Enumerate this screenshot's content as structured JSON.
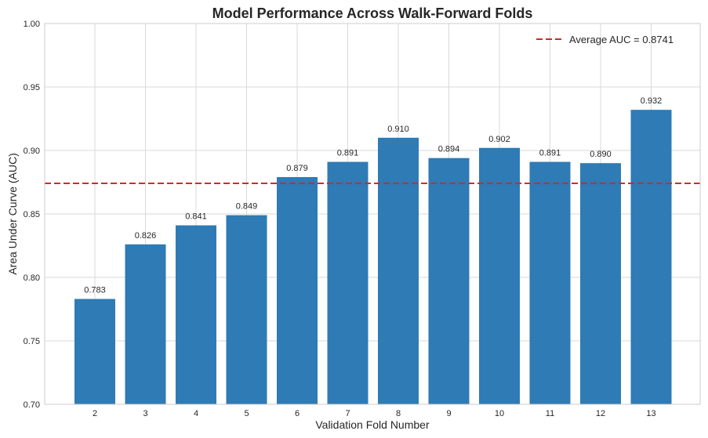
{
  "chart_data": {
    "type": "bar",
    "title": "Model Performance Across Walk-Forward Folds",
    "xlabel": "Validation Fold Number",
    "ylabel": "Area Under Curve (AUC)",
    "categories": [
      "2",
      "3",
      "4",
      "5",
      "6",
      "7",
      "8",
      "9",
      "10",
      "11",
      "12",
      "13"
    ],
    "values": [
      0.783,
      0.826,
      0.841,
      0.849,
      0.879,
      0.891,
      0.91,
      0.894,
      0.902,
      0.891,
      0.89,
      0.932
    ],
    "value_labels": [
      "0.783",
      "0.826",
      "0.841",
      "0.849",
      "0.879",
      "0.891",
      "0.910",
      "0.894",
      "0.902",
      "0.891",
      "0.890",
      "0.932"
    ],
    "ylim": [
      0.7,
      1.0
    ],
    "yticks": [
      0.7,
      0.75,
      0.8,
      0.85,
      0.9,
      0.95,
      1.0
    ],
    "ytick_labels": [
      "0.70",
      "0.75",
      "0.80",
      "0.85",
      "0.90",
      "0.95",
      "1.00"
    ],
    "grid": true,
    "bar_color": "#2e7bb5",
    "reference_line": {
      "value": 0.8741,
      "label": "Average AUC = 0.8741",
      "color": "#d62728",
      "style": "dashed"
    },
    "legend": {
      "placement": "top-right",
      "entries": [
        "Average AUC = 0.8741"
      ]
    }
  }
}
